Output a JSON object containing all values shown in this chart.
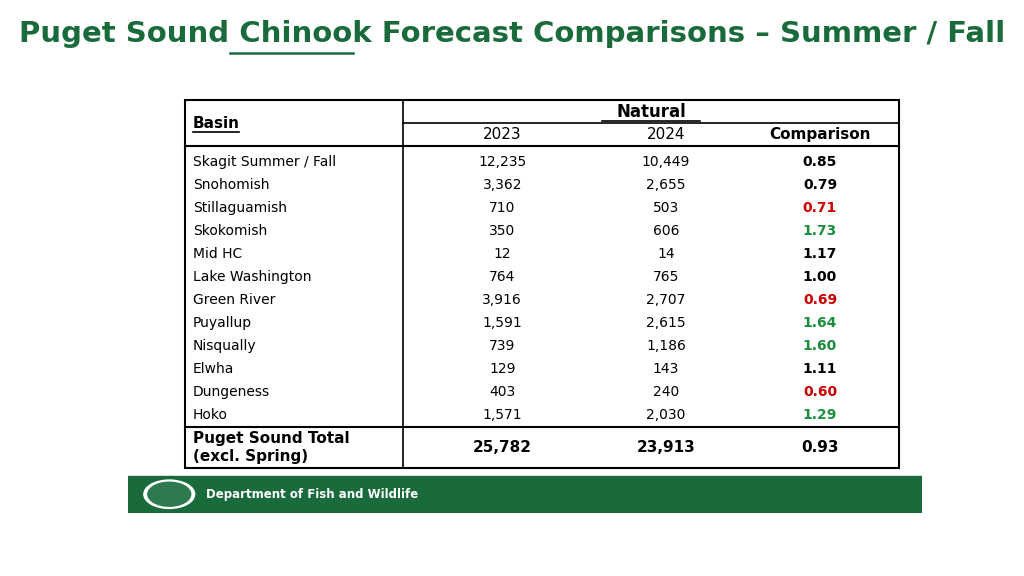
{
  "title_color": "#1a6b3c",
  "title_fontsize": 21,
  "col_header_group": "Natural",
  "col_headers": [
    "2023",
    "2024",
    "Comparison"
  ],
  "row_header": "Basin",
  "rows": [
    [
      "Skagit Summer / Fall",
      "12,235",
      "10,449",
      "0.85",
      "black"
    ],
    [
      "Snohomish",
      "3,362",
      "2,655",
      "0.79",
      "black"
    ],
    [
      "Stillaguamish",
      "710",
      "503",
      "0.71",
      "red"
    ],
    [
      "Skokomish",
      "350",
      "606",
      "1.73",
      "green"
    ],
    [
      "Mid HC",
      "12",
      "14",
      "1.17",
      "black"
    ],
    [
      "Lake Washington",
      "764",
      "765",
      "1.00",
      "black"
    ],
    [
      "Green River",
      "3,916",
      "2,707",
      "0.69",
      "red"
    ],
    [
      "Puyallup",
      "1,591",
      "2,615",
      "1.64",
      "green"
    ],
    [
      "Nisqually",
      "739",
      "1,186",
      "1.60",
      "green"
    ],
    [
      "Elwha",
      "129",
      "143",
      "1.11",
      "black"
    ],
    [
      "Dungeness",
      "403",
      "240",
      "0.60",
      "red"
    ],
    [
      "Hoko",
      "1,571",
      "2,030",
      "1.29",
      "green"
    ]
  ],
  "total_row": [
    "Puget Sound Total\n(excl. Spring)",
    "25,782",
    "23,913",
    "0.93",
    "black"
  ],
  "footer_text": "Department of Fish and Wildlife",
  "footer_bg": "#1a6b3c",
  "background_color": "#ffffff",
  "comparison_red": "#cc0000",
  "comparison_green": "#1a8c3c"
}
